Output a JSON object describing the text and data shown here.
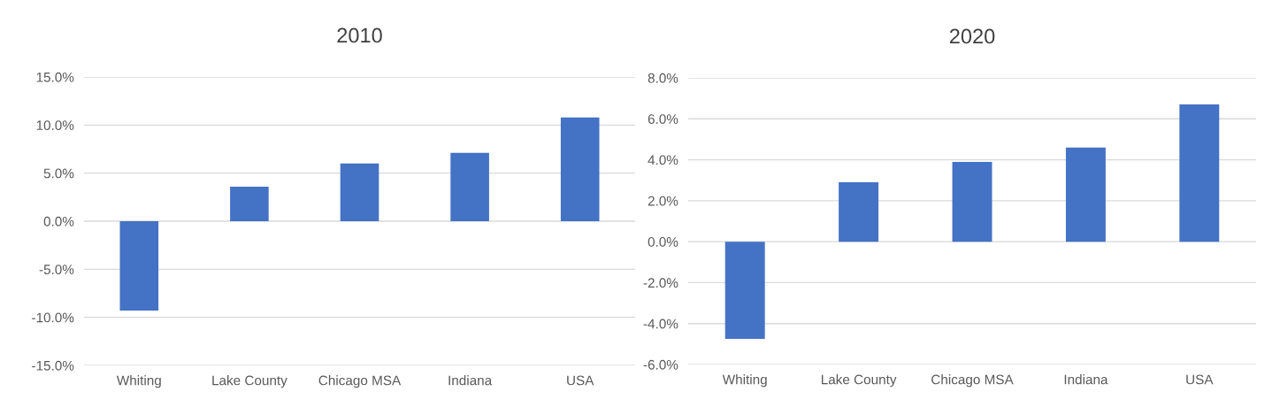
{
  "chart_data": [
    {
      "type": "bar",
      "title": "2010",
      "categories": [
        "Whiting",
        "Lake County",
        "Chicago MSA",
        "Indiana",
        "USA"
      ],
      "values": [
        -9.3,
        3.6,
        6.0,
        7.1,
        10.8
      ],
      "color": "#4472c4",
      "ylim": [
        -15,
        15
      ],
      "yticks": [
        {
          "value": -15,
          "label": "-15.0%"
        },
        {
          "value": -10,
          "label": "-10.0%"
        },
        {
          "value": -5,
          "label": "-5.0%"
        },
        {
          "value": 0,
          "label": "0.0%"
        },
        {
          "value": 5,
          "label": "5.0%"
        },
        {
          "value": 10,
          "label": "10.0%"
        },
        {
          "value": 15,
          "label": "15.0%"
        }
      ],
      "grid": "y"
    },
    {
      "type": "bar",
      "title": "2020",
      "categories": [
        "Whiting",
        "Lake County",
        "Chicago MSA",
        "Indiana",
        "USA"
      ],
      "values": [
        -4.75,
        2.9,
        3.9,
        4.6,
        6.7
      ],
      "color": "#4472c4",
      "ylim": [
        -6,
        8
      ],
      "yticks": [
        {
          "value": -6,
          "label": "-6.0%"
        },
        {
          "value": -4,
          "label": "-4.0%"
        },
        {
          "value": -2,
          "label": "-2.0%"
        },
        {
          "value": 0,
          "label": "0.0%"
        },
        {
          "value": 2,
          "label": "2.0%"
        },
        {
          "value": 4,
          "label": "4.0%"
        },
        {
          "value": 6,
          "label": "6.0%"
        },
        {
          "value": 8,
          "label": "8.0%"
        }
      ],
      "grid": "y"
    }
  ]
}
